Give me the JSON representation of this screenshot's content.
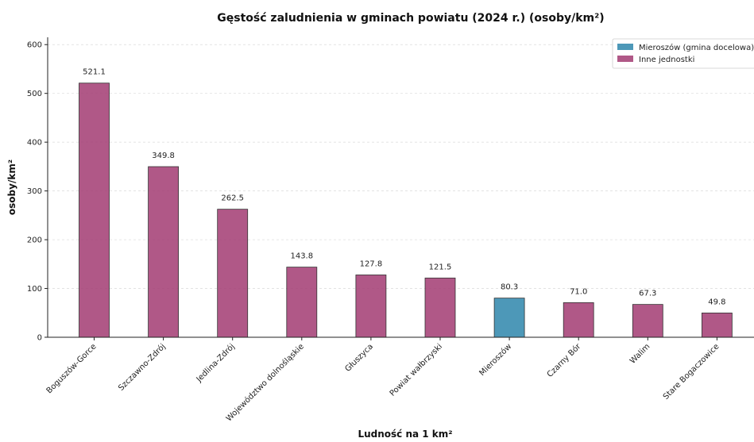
{
  "chart_data": {
    "type": "bar",
    "title": "Gęstość zaludnienia w gminach powiatu (2024 r.) (osoby/km²)",
    "xlabel": "Ludność na 1 km²",
    "ylabel": "osoby/km²",
    "ylim": [
      0,
      615
    ],
    "yticks": [
      0,
      100,
      200,
      300,
      400,
      500,
      600
    ],
    "grid": "horizontal-dashed",
    "legend_position": "top-right",
    "categories": [
      "Boguszów-Gorce",
      "Szczawno-Zdrój",
      "Jedlina-Zdrój",
      "Województwo dolnośląskie",
      "Głuszyca",
      "Powiat wałbrzyski",
      "Mieroszów",
      "Czarny Bór",
      "Walim",
      "Stare Bogaczowice"
    ],
    "values": [
      521.1,
      349.8,
      262.5,
      143.8,
      127.8,
      121.5,
      80.3,
      71.0,
      67.3,
      49.8
    ],
    "value_labels": [
      "521.1",
      "349.8",
      "262.5",
      "143.8",
      "127.8",
      "121.5",
      "80.3",
      "71.0",
      "67.3",
      "49.8"
    ],
    "groups": [
      "other",
      "other",
      "other",
      "other",
      "other",
      "other",
      "target",
      "other",
      "other",
      "other"
    ],
    "legend": [
      {
        "key": "target",
        "label": "Mieroszów (gmina docelowa)",
        "color": "#2e86ab"
      },
      {
        "key": "other",
        "label": "Inne jednostki",
        "color": "#a23b72"
      }
    ]
  }
}
